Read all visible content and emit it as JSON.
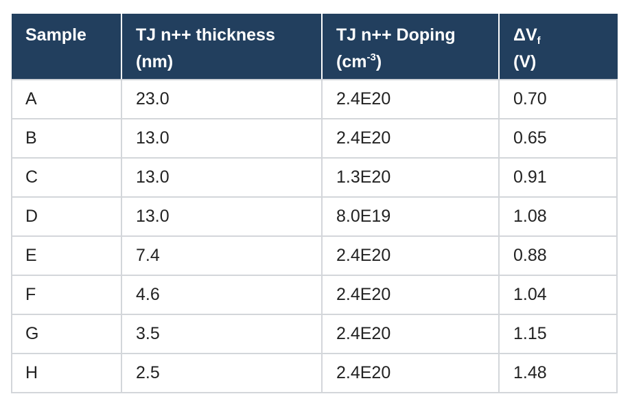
{
  "table": {
    "headers": [
      {
        "line1": "Sample",
        "line2": ""
      },
      {
        "line1": "TJ n++ thickness",
        "line2": "(nm)"
      },
      {
        "line1": "TJ n++ Doping",
        "line2_pre": "(cm",
        "line2_sup": "-3",
        "line2_post": ")"
      },
      {
        "line1_main": "ΔV",
        "line1_sub": "f",
        "line2": "(V)"
      }
    ],
    "rows": [
      [
        "A",
        "23.0",
        "2.4E20",
        "0.70"
      ],
      [
        "B",
        "13.0",
        "2.4E20",
        "0.65"
      ],
      [
        "C",
        "13.0",
        "1.3E20",
        "0.91"
      ],
      [
        "D",
        "13.0",
        "8.0E19",
        "1.08"
      ],
      [
        "E",
        "7.4",
        "2.4E20",
        "0.88"
      ],
      [
        "F",
        "4.6",
        "2.4E20",
        "1.04"
      ],
      [
        "G",
        "3.5",
        "2.4E20",
        "1.15"
      ],
      [
        "H",
        "2.5",
        "2.4E20",
        "1.48"
      ]
    ]
  },
  "colors": {
    "header_bg": "#223f5e",
    "header_text": "#ffffff",
    "grid": "#d3d6da",
    "cell_text": "#222222"
  }
}
